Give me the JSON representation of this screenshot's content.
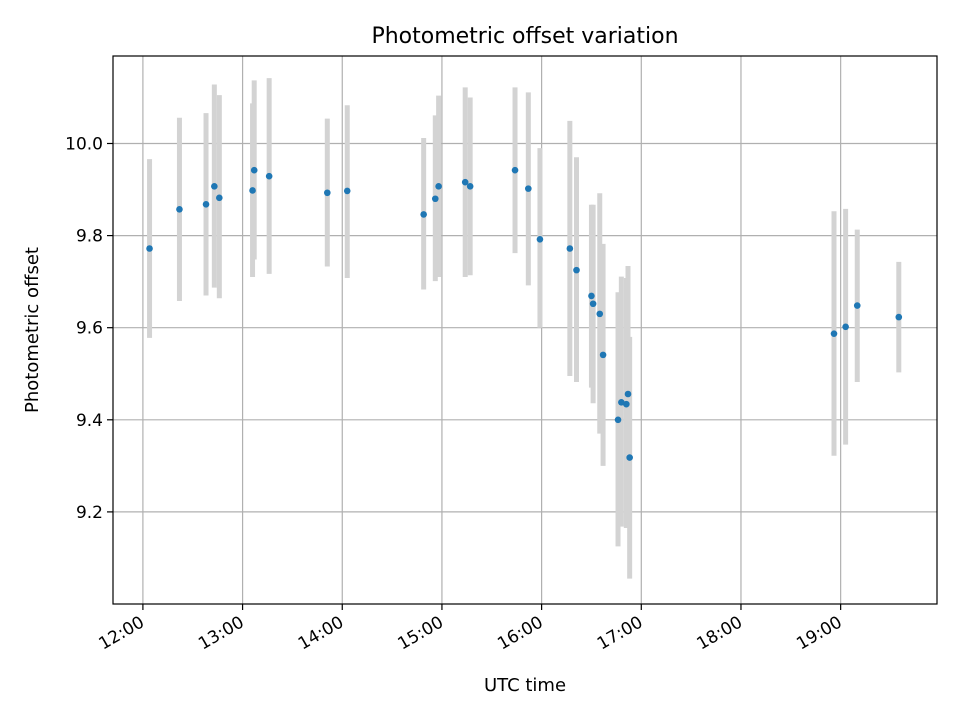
{
  "chart_data": {
    "type": "scatter",
    "title": "Photometric offset variation",
    "xlabel": "UTC time",
    "ylabel": "Photometric offset",
    "x_ticks": [
      "12:00",
      "13:00",
      "14:00",
      "15:00",
      "16:00",
      "17:00",
      "18:00",
      "19:00"
    ],
    "y_ticks": [
      "9.2",
      "9.4",
      "9.6",
      "9.8",
      "10.0"
    ],
    "xlim": [
      "11:42",
      "19:58"
    ],
    "ylim": [
      9.0,
      10.19
    ],
    "grid": true,
    "colors": {
      "point": "#1f77b4",
      "errorbar": "#d3d3d3"
    },
    "points": [
      {
        "time": "12:04",
        "value": 9.772,
        "lower": 9.578,
        "upper": 9.966
      },
      {
        "time": "12:22",
        "value": 9.857,
        "lower": 9.658,
        "upper": 10.056
      },
      {
        "time": "12:38",
        "value": 9.868,
        "lower": 9.67,
        "upper": 10.066
      },
      {
        "time": "12:43",
        "value": 9.907,
        "lower": 9.687,
        "upper": 10.128
      },
      {
        "time": "12:46",
        "value": 9.882,
        "lower": 9.664,
        "upper": 10.105
      },
      {
        "time": "13:06",
        "value": 9.898,
        "lower": 9.71,
        "upper": 10.087
      },
      {
        "time": "13:07",
        "value": 9.942,
        "lower": 9.748,
        "upper": 10.137
      },
      {
        "time": "13:16",
        "value": 9.929,
        "lower": 9.717,
        "upper": 10.142
      },
      {
        "time": "13:51",
        "value": 9.893,
        "lower": 9.733,
        "upper": 10.054
      },
      {
        "time": "14:03",
        "value": 9.897,
        "lower": 9.708,
        "upper": 10.083
      },
      {
        "time": "14:49",
        "value": 9.846,
        "lower": 9.683,
        "upper": 10.012
      },
      {
        "time": "14:56",
        "value": 9.88,
        "lower": 9.701,
        "upper": 10.061
      },
      {
        "time": "14:58",
        "value": 9.907,
        "lower": 9.71,
        "upper": 10.104
      },
      {
        "time": "15:14",
        "value": 9.916,
        "lower": 9.71,
        "upper": 10.122
      },
      {
        "time": "15:17",
        "value": 9.907,
        "lower": 9.714,
        "upper": 10.1
      },
      {
        "time": "15:44",
        "value": 9.942,
        "lower": 9.762,
        "upper": 10.122
      },
      {
        "time": "15:52",
        "value": 9.902,
        "lower": 9.692,
        "upper": 10.111
      },
      {
        "time": "15:59",
        "value": 9.792,
        "lower": 9.6,
        "upper": 9.99
      },
      {
        "time": "16:17",
        "value": 9.772,
        "lower": 9.495,
        "upper": 10.049
      },
      {
        "time": "16:21",
        "value": 9.725,
        "lower": 9.482,
        "upper": 9.97
      },
      {
        "time": "16:30",
        "value": 9.669,
        "lower": 9.47,
        "upper": 9.867
      },
      {
        "time": "16:31",
        "value": 9.652,
        "lower": 9.436,
        "upper": 9.867
      },
      {
        "time": "16:35",
        "value": 9.63,
        "lower": 9.37,
        "upper": 9.892
      },
      {
        "time": "16:37",
        "value": 9.541,
        "lower": 9.3,
        "upper": 9.782
      },
      {
        "time": "16:46",
        "value": 9.4,
        "lower": 9.125,
        "upper": 9.677
      },
      {
        "time": "16:48",
        "value": 9.438,
        "lower": 9.168,
        "upper": 9.711
      },
      {
        "time": "16:51",
        "value": 9.434,
        "lower": 9.165,
        "upper": 9.708
      },
      {
        "time": "16:52",
        "value": 9.456,
        "lower": 9.179,
        "upper": 9.734
      },
      {
        "time": "16:53",
        "value": 9.318,
        "lower": 9.055,
        "upper": 9.58
      },
      {
        "time": "18:56",
        "value": 9.587,
        "lower": 9.322,
        "upper": 9.853
      },
      {
        "time": "19:03",
        "value": 9.602,
        "lower": 9.346,
        "upper": 9.858
      },
      {
        "time": "19:10",
        "value": 9.648,
        "lower": 9.482,
        "upper": 9.813
      },
      {
        "time": "19:35",
        "value": 9.623,
        "lower": 9.503,
        "upper": 9.743
      }
    ]
  }
}
